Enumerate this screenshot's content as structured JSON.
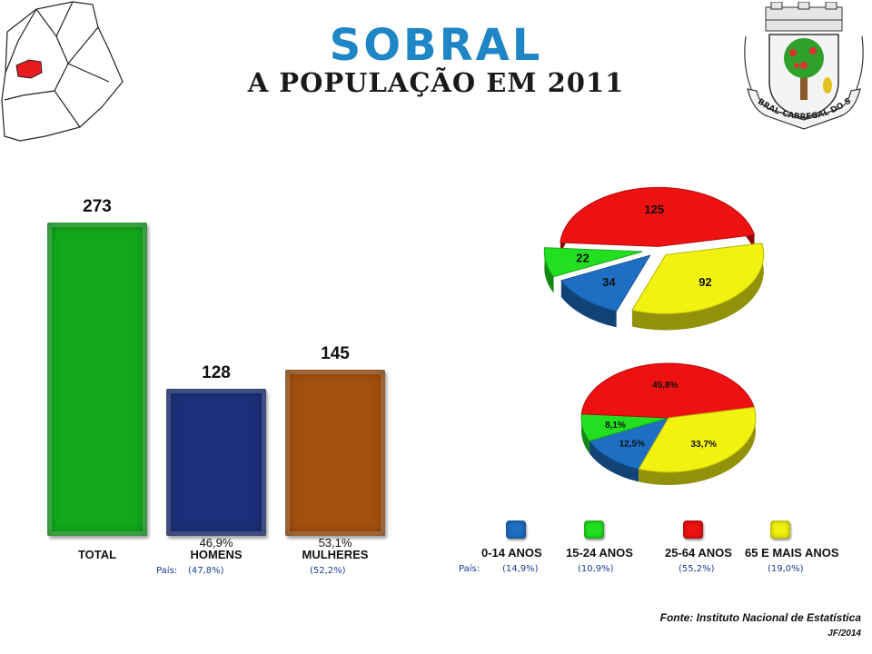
{
  "header": {
    "title": "SOBRAL",
    "subtitle": "A POPULAÇÃO EM 2011",
    "crest_text": "SOBRAL-CARREGAL DO SAL"
  },
  "chart_data": [
    {
      "type": "bar",
      "categories": [
        "TOTAL",
        "HOMENS",
        "MULHERES"
      ],
      "values": [
        273,
        128,
        145
      ],
      "percent_labels": [
        "",
        "46,9%",
        "53,1%"
      ],
      "colors": [
        "#13a81c",
        "#1b2f7a",
        "#a3500f"
      ],
      "ylim": [
        0,
        273
      ],
      "pais_label": "País:",
      "pais_values": [
        "(47,8%)",
        "(52,2%)"
      ]
    },
    {
      "type": "pie",
      "categories": [
        "0-14 ANOS",
        "15-24 ANOS",
        "25-64 ANOS",
        "65 E MAIS ANOS"
      ],
      "values": [
        34,
        22,
        125,
        92
      ],
      "colors": [
        "#1e6fc4",
        "#22e01f",
        "#ee1111",
        "#f2f210"
      ]
    },
    {
      "type": "pie",
      "categories": [
        "0-14 ANOS",
        "15-24 ANOS",
        "25-64 ANOS",
        "65 E MAIS ANOS"
      ],
      "values": [
        12.5,
        8.1,
        45.8,
        33.7
      ],
      "labels": [
        "12,5%",
        "8,1%",
        "45,8%",
        "33,7%"
      ],
      "colors": [
        "#1e6fc4",
        "#22e01f",
        "#ee1111",
        "#f2f210"
      ],
      "pais_label": "País:",
      "pais_values": [
        "(14,9%)",
        "(10,9%)",
        "(55,2%)",
        "(19,0%)"
      ]
    }
  ],
  "legend": {
    "items": [
      {
        "label": "0-14 ANOS",
        "color": "#1e6fc4"
      },
      {
        "label": "15-24 ANOS",
        "color": "#22e01f"
      },
      {
        "label": "25-64 ANOS",
        "color": "#ee1111"
      },
      {
        "label": "65 E MAIS ANOS",
        "color": "#f2f210"
      }
    ]
  },
  "footer": {
    "source": "Fonte: Instituto Nacional de Estatística",
    "author": "JF/2014"
  }
}
